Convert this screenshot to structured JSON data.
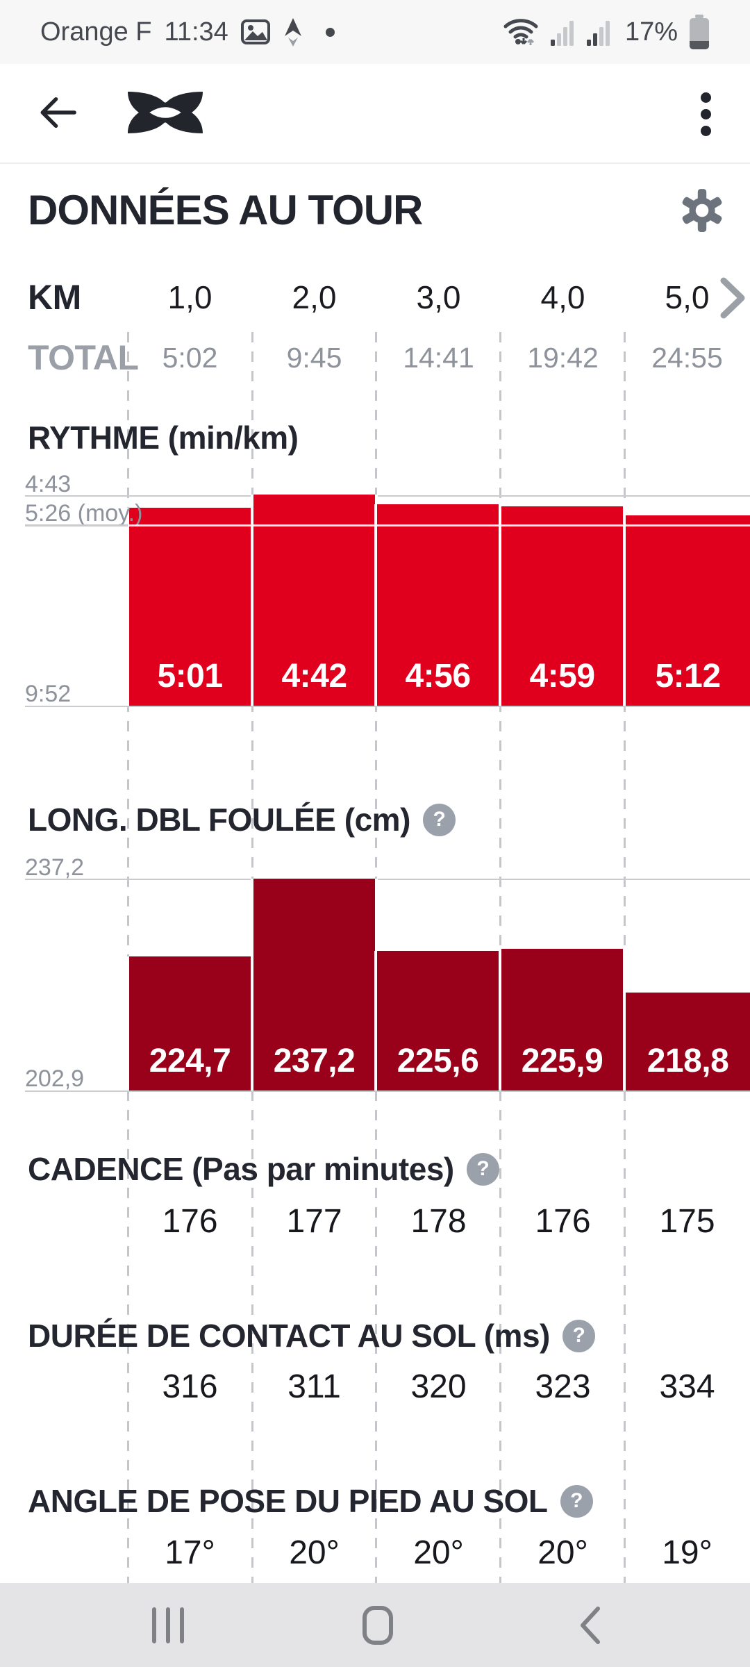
{
  "status_bar": {
    "carrier": "Orange F",
    "time": "11:34",
    "battery_percent": "17%"
  },
  "page": {
    "title": "DONNÉES AU TOUR"
  },
  "lap_header": {
    "km_label": "KM",
    "total_label": "TOTAL",
    "km_values": [
      "1,0",
      "2,0",
      "3,0",
      "4,0",
      "5,0"
    ],
    "total_values": [
      "5:02",
      "9:45",
      "14:41",
      "19:42",
      "24:55"
    ]
  },
  "ui": {
    "help_glyph": "?"
  },
  "chart_data": [
    {
      "id": "pace",
      "type": "bar",
      "title": "RYTHME (min/km)",
      "categories": [
        "1,0",
        "2,0",
        "3,0",
        "4,0",
        "5,0"
      ],
      "values": [
        301,
        282,
        296,
        299,
        312
      ],
      "labels": [
        "5:01",
        "4:42",
        "4:56",
        "4:59",
        "5:12"
      ],
      "value_unit": "seconds per km (displayed as min:sec)",
      "axis_top_value": 283,
      "axis_bottom_value": 592,
      "axis_top_label": "4:43",
      "axis_bottom_label": "9:52",
      "average_value": 326,
      "average_label": "5:26 (moy.)",
      "bar_color": "#e0001d",
      "inverted_axis": true,
      "grid": "vertical-dashed",
      "legend": "none"
    },
    {
      "id": "stride-length",
      "type": "bar",
      "title": "LONG. DBL FOULÉE (cm)",
      "categories": [
        "1,0",
        "2,0",
        "3,0",
        "4,0",
        "5,0"
      ],
      "values": [
        224.7,
        237.2,
        225.6,
        225.9,
        218.8
      ],
      "labels": [
        "224,7",
        "237,2",
        "225,6",
        "225,9",
        "218,8"
      ],
      "axis_top_value": 237.2,
      "axis_bottom_value": 202.9,
      "axis_top_label": "237,2",
      "axis_bottom_label": "202,9",
      "bar_color": "#99001a",
      "has_help_icon": true,
      "grid": "vertical-dashed",
      "legend": "none"
    },
    {
      "id": "cadence",
      "type": "table",
      "title": "CADENCE (Pas par minutes)",
      "categories": [
        "1,0",
        "2,0",
        "3,0",
        "4,0",
        "5,0"
      ],
      "values": [
        176,
        177,
        178,
        176,
        175
      ],
      "labels": [
        "176",
        "177",
        "178",
        "176",
        "175"
      ],
      "has_help_icon": true
    },
    {
      "id": "ground-contact-time",
      "type": "table",
      "title": "DURÉE DE CONTACT AU SOL (ms)",
      "categories": [
        "1,0",
        "2,0",
        "3,0",
        "4,0",
        "5,0"
      ],
      "values": [
        316,
        311,
        320,
        323,
        334
      ],
      "labels": [
        "316",
        "311",
        "320",
        "323",
        "334"
      ],
      "has_help_icon": true
    },
    {
      "id": "foot-strike-angle",
      "type": "table",
      "title": "ANGLE DE POSE DU PIED AU SOL",
      "categories": [
        "1,0",
        "2,0",
        "3,0",
        "4,0",
        "5,0"
      ],
      "values": [
        17,
        20,
        20,
        20,
        19
      ],
      "labels": [
        "17°",
        "20°",
        "20°",
        "20°",
        "19°"
      ],
      "has_help_icon": true
    }
  ],
  "colors": {
    "accent_red": "#e0001d",
    "dark_red": "#99001a",
    "dark_text": "#23262e",
    "gray_text": "#8d929b",
    "status_bar_bg": "#f7f7f8",
    "nav_bar_bg": "#e4e4e6"
  }
}
